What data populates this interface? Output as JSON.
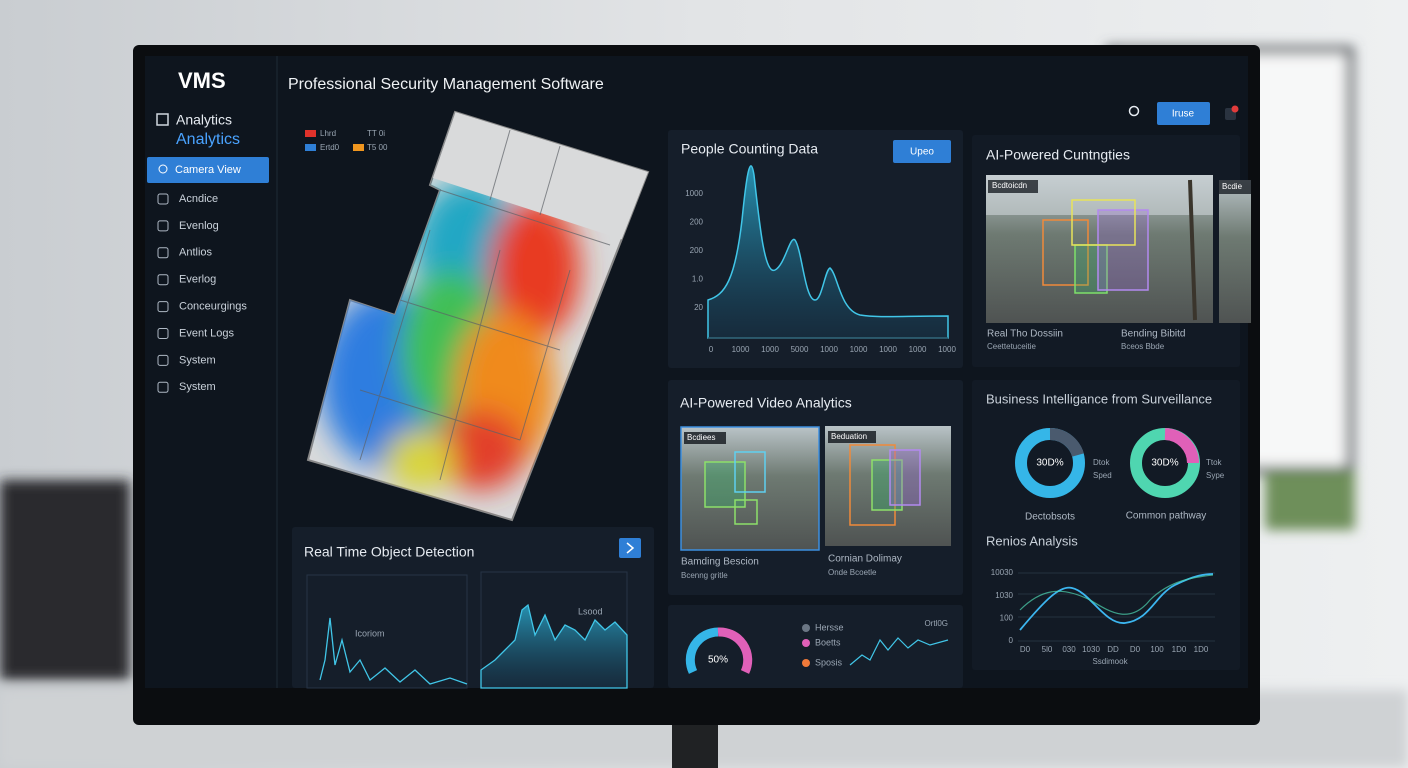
{
  "sidebar": {
    "logo": "VMS",
    "section_title": "Analytics",
    "section_subtitle": "Analytics",
    "items": [
      "Camera View",
      "Acndice",
      "Evenlog",
      "Antlios",
      "Everlog",
      "Conceurgings",
      "Event Logs",
      "System",
      "System"
    ]
  },
  "header": {
    "title": "Professional Security Management Software",
    "button": "Iruse"
  },
  "heatmap": {
    "legend": [
      "Lhrd",
      "Ertd0",
      "TT 0i",
      "T5 00"
    ]
  },
  "people_counting": {
    "title": "People Counting Data",
    "button": "Upeo",
    "y_labels": [
      "1000",
      "200",
      "200",
      "1.0",
      "20"
    ],
    "x_labels": [
      "0",
      "1000",
      "1000",
      "5000",
      "1000",
      "1000",
      "1000",
      "1000",
      "1000"
    ]
  },
  "ai_counting": {
    "title": "AI-Powered Cuntngties",
    "tag": "Bcdtoicdn",
    "tag2": "Bcdie",
    "captions": [
      {
        "title": "Real Tho Dossiin",
        "subtitle": "Ceettetuceitie"
      },
      {
        "title": "Bending Bibitd",
        "subtitle": "Bceos Bbde"
      }
    ]
  },
  "video_analytics": {
    "title": "AI-Powered Video Analytics",
    "tags": [
      "Bcdiees",
      "Beduation"
    ],
    "captions": [
      {
        "title": "Bamding Bescion",
        "subtitle": "Bcenng gritle"
      },
      {
        "title": "Cornian Dolimay",
        "subtitle": "Onde Bcoetle"
      }
    ]
  },
  "business": {
    "title": "Business Intelligance from Surveillance",
    "donuts": [
      {
        "value": "30D%",
        "label_1": "Dtok",
        "label_2": "Sped",
        "caption": "Dectobsots"
      },
      {
        "value": "30D%",
        "label_1": "Ttok",
        "label_2": "Sype",
        "caption": "Common pathway"
      }
    ]
  },
  "trend": {
    "title": "Renios Analysis",
    "y_labels": [
      "10030",
      "1030",
      "100",
      "0"
    ],
    "x_labels": [
      "D0",
      "5l0",
      "030",
      "1030",
      "DD",
      "D0",
      "100",
      "1D0",
      "1D0"
    ],
    "x_title": "Ssdimook"
  },
  "detection": {
    "title": "Real Time Object Detection",
    "label_1": "Icoriom",
    "label_2": "Lsood"
  },
  "summary": {
    "gauge": "50%",
    "legend": [
      "Hersse",
      "Boetts",
      "Sposis"
    ],
    "corner": "Ortl0G"
  }
}
